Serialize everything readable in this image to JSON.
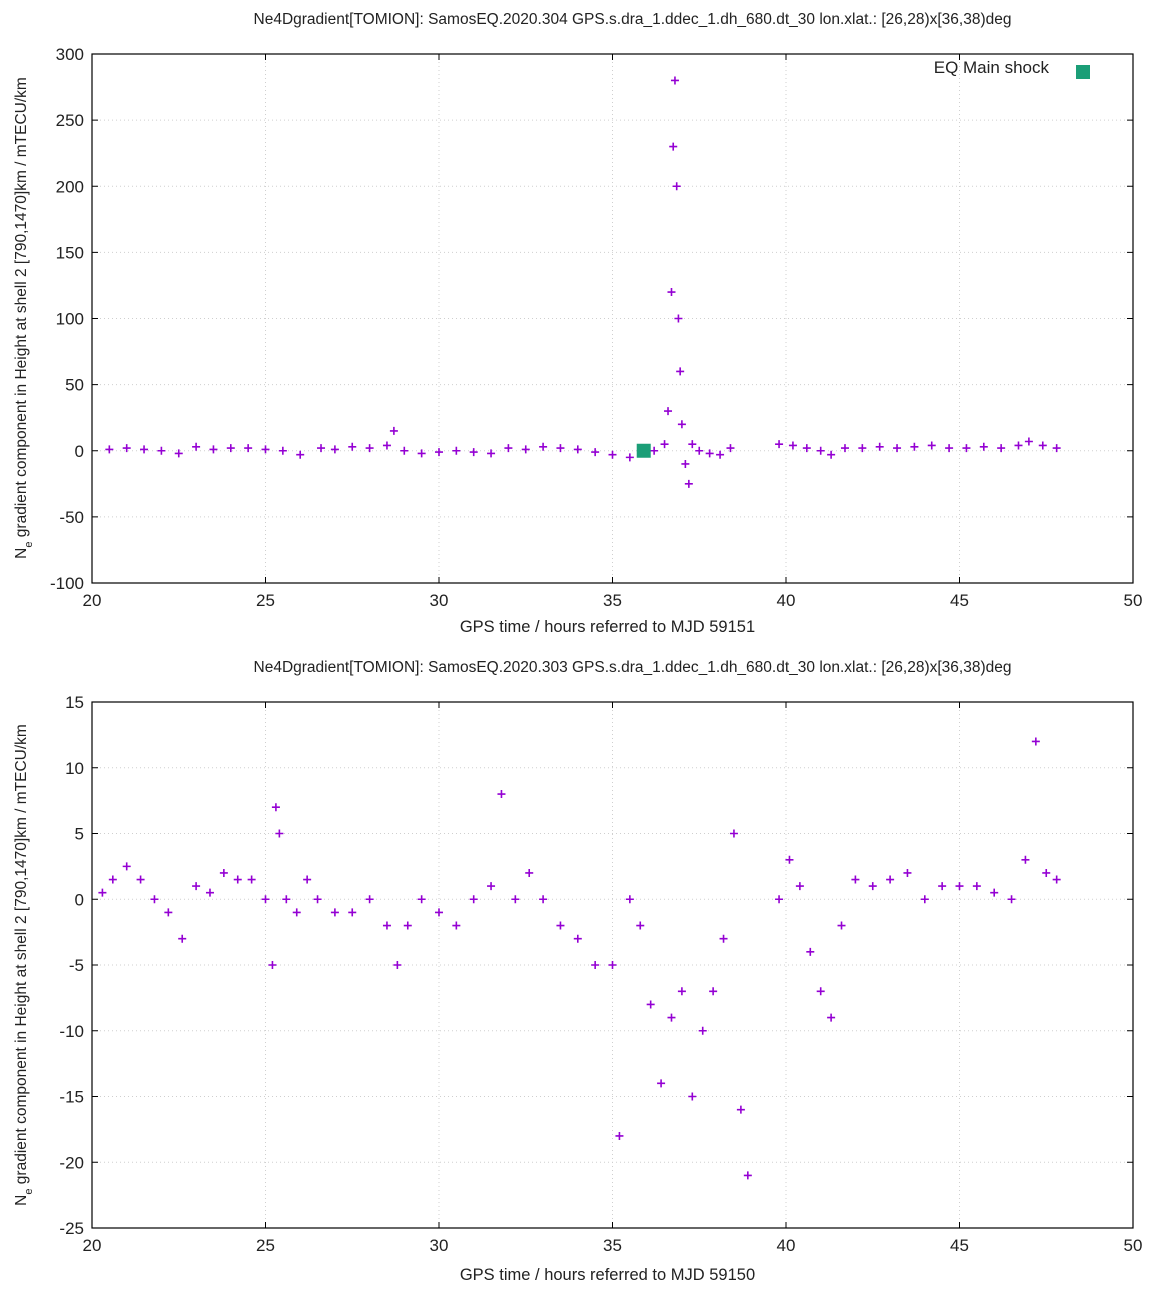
{
  "chart_data": [
    {
      "type": "scatter",
      "title": "Ne4Dgradient[TOMION]: SamosEQ.2020.304 GPS.s.dra_1.ddec_1.dh_680.dt_30 lon.xlat.: [26,28)x[36,38)deg",
      "xlabel": "GPS time / hours referred to MJD 59151",
      "ylabel": "N",
      "ylabel_sub": "e",
      "ylabel_rest": " gradient component in Height at shell 2 [790,1470]km / mTECU/km",
      "xlim": [
        20,
        50
      ],
      "ylim": [
        -100,
        300
      ],
      "xticks": [
        20,
        25,
        30,
        35,
        40,
        45,
        50
      ],
      "yticks": [
        -100,
        -50,
        0,
        50,
        100,
        150,
        200,
        250,
        300
      ],
      "grid": true,
      "legend_position": "top-right",
      "colors": {
        "points": "#9400d3",
        "event": "#1b9e77"
      },
      "series": [
        {
          "name": "",
          "marker": "+",
          "x": [
            20.5,
            21.0,
            21.5,
            22.0,
            22.5,
            23.0,
            23.5,
            24.0,
            24.5,
            25.0,
            25.5,
            26.0,
            26.6,
            27.0,
            27.5,
            28.0,
            28.5,
            28.7,
            29.0,
            29.5,
            30.0,
            30.5,
            31.0,
            31.5,
            32.0,
            32.5,
            33.0,
            33.5,
            34.0,
            34.5,
            35.0,
            35.5,
            35.9,
            36.2,
            36.5,
            36.6,
            36.7,
            36.75,
            36.8,
            36.85,
            36.9,
            36.95,
            37.0,
            37.1,
            37.2,
            37.3,
            37.5,
            37.8,
            38.1,
            38.4,
            39.8,
            40.2,
            40.6,
            41.0,
            41.3,
            41.7,
            42.2,
            42.7,
            43.2,
            43.7,
            44.2,
            44.7,
            45.2,
            45.7,
            46.2,
            46.7,
            47.0,
            47.4,
            47.8
          ],
          "y": [
            1,
            2,
            1,
            0,
            -2,
            3,
            1,
            2,
            2,
            1,
            0,
            -3,
            2,
            1,
            3,
            2,
            4,
            15,
            0,
            -2,
            -1,
            0,
            -1,
            -2,
            2,
            1,
            3,
            2,
            1,
            -1,
            -3,
            -5,
            -2,
            0,
            5,
            30,
            120,
            230,
            280,
            200,
            100,
            60,
            20,
            -10,
            -25,
            5,
            0,
            -2,
            -3,
            2,
            5,
            4,
            2,
            0,
            -3,
            2,
            2,
            3,
            2,
            3,
            4,
            2,
            2,
            3,
            2,
            4,
            7,
            4,
            2
          ]
        }
      ],
      "annotations": [
        {
          "label": "EQ Main shock",
          "x": 35.9,
          "y": 0
        }
      ]
    },
    {
      "type": "scatter",
      "title": "Ne4Dgradient[TOMION]: SamosEQ.2020.303 GPS.s.dra_1.ddec_1.dh_680.dt_30 lon.xlat.: [26,28)x[36,38)deg",
      "xlabel": "GPS time / hours referred to MJD 59150",
      "ylabel": "N",
      "ylabel_sub": "e",
      "ylabel_rest": " gradient component in Height at shell 2 [790,1470]km / mTECU/km",
      "xlim": [
        20,
        50
      ],
      "ylim": [
        -25,
        15
      ],
      "xticks": [
        20,
        25,
        30,
        35,
        40,
        45,
        50
      ],
      "yticks": [
        -25,
        -20,
        -15,
        -10,
        -5,
        0,
        5,
        10,
        15
      ],
      "grid": true,
      "colors": {
        "points": "#9400d3"
      },
      "series": [
        {
          "name": "",
          "marker": "+",
          "x": [
            20.3,
            20.6,
            21.0,
            21.4,
            21.8,
            22.2,
            22.6,
            23.0,
            23.4,
            23.8,
            24.2,
            24.6,
            25.0,
            25.2,
            25.3,
            25.4,
            25.6,
            25.9,
            26.2,
            26.5,
            27.0,
            27.5,
            28.0,
            28.5,
            28.8,
            29.1,
            29.5,
            30.0,
            30.5,
            31.0,
            31.5,
            31.8,
            32.2,
            32.6,
            33.0,
            33.5,
            34.0,
            34.5,
            35.0,
            35.2,
            35.5,
            35.8,
            36.1,
            36.4,
            36.7,
            37.0,
            37.3,
            37.6,
            37.9,
            38.2,
            38.5,
            38.7,
            38.9,
            39.8,
            40.1,
            40.4,
            40.7,
            41.0,
            41.3,
            41.6,
            42.0,
            42.5,
            43.0,
            43.5,
            44.0,
            44.5,
            45.0,
            45.5,
            46.0,
            46.5,
            46.9,
            47.2,
            47.5,
            47.8
          ],
          "y": [
            0.5,
            1.5,
            2.5,
            1.5,
            0,
            -1,
            -3,
            1,
            0.5,
            2,
            1.5,
            1.5,
            0,
            -5,
            7,
            5,
            0,
            -1,
            1.5,
            0,
            -1,
            -1,
            0,
            -2,
            -5,
            -2,
            0,
            -1,
            -2,
            0,
            1,
            8,
            0,
            2,
            0,
            -2,
            -3,
            -5,
            -5,
            -18,
            0,
            -2,
            -8,
            -14,
            -9,
            -7,
            -15,
            -10,
            -7,
            -3,
            5,
            -16,
            -21,
            0,
            3,
            1,
            -4,
            -7,
            -9,
            -2,
            1.5,
            1,
            1.5,
            2,
            0,
            1,
            1,
            1,
            0.5,
            0,
            3,
            12,
            2,
            1.5
          ]
        }
      ]
    }
  ]
}
